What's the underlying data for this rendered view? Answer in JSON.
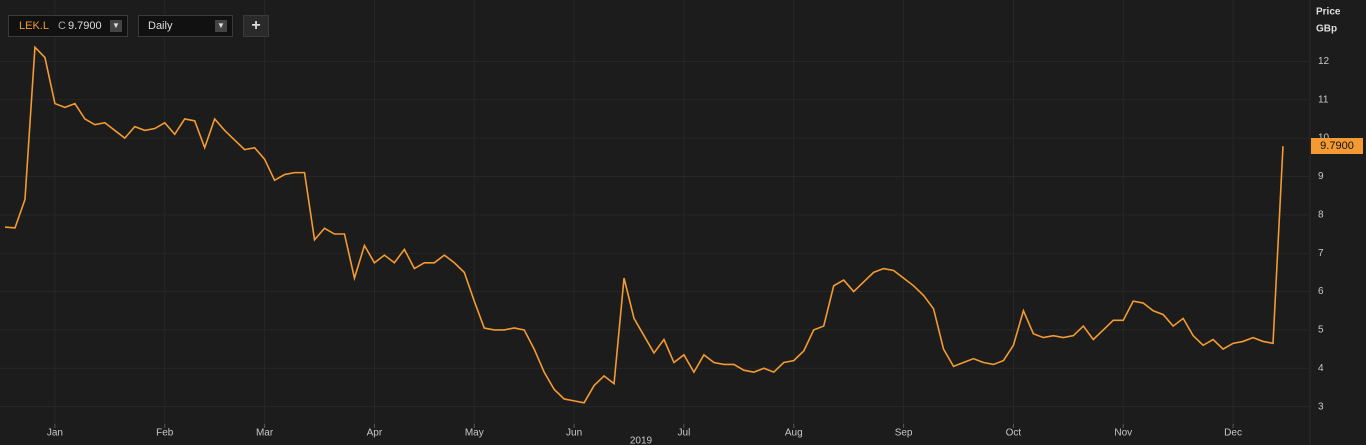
{
  "toolbar": {
    "symbol": "LEK.L",
    "price_type": "C",
    "price": "9.7900",
    "interval": "Daily",
    "add_button": "+"
  },
  "chart_data": {
    "type": "line",
    "ylabel": "Price",
    "yunit": "GBp",
    "xlabel": "2019",
    "color": "#f39a32",
    "grid": true,
    "values": [
      7.68,
      7.66,
      8.4,
      12.37,
      12.1,
      10.9,
      10.8,
      10.9,
      10.5,
      10.35,
      10.4,
      10.2,
      10.0,
      10.3,
      10.2,
      10.25,
      10.4,
      10.1,
      10.5,
      10.45,
      9.75,
      10.5,
      10.2,
      9.95,
      9.7,
      9.75,
      9.45,
      8.9,
      9.05,
      9.1,
      9.1,
      7.35,
      7.65,
      7.5,
      7.5,
      6.35,
      7.2,
      6.75,
      6.95,
      6.75,
      7.1,
      6.6,
      6.75,
      6.75,
      6.95,
      6.75,
      6.5,
      5.75,
      5.05,
      5.0,
      5.0,
      5.05,
      5.0,
      4.5,
      3.9,
      3.45,
      3.2,
      3.15,
      3.1,
      3.55,
      3.8,
      3.6,
      6.35,
      5.3,
      4.85,
      4.4,
      4.75,
      4.15,
      4.35,
      3.9,
      4.35,
      4.15,
      4.1,
      4.1,
      3.95,
      3.9,
      4.0,
      3.9,
      4.15,
      4.2,
      4.45,
      5.0,
      5.1,
      6.15,
      6.3,
      6.0,
      6.25,
      6.5,
      6.6,
      6.55,
      6.35,
      6.15,
      5.9,
      5.55,
      4.5,
      4.05,
      4.15,
      4.25,
      4.15,
      4.1,
      4.2,
      4.6,
      5.5,
      4.9,
      4.8,
      4.85,
      4.8,
      4.85,
      5.1,
      4.75,
      5.0,
      5.25,
      5.25,
      5.75,
      5.7,
      5.5,
      5.4,
      5.1,
      5.3,
      4.85,
      4.6,
      4.75,
      4.5,
      4.65,
      4.7,
      4.8,
      4.7,
      4.65,
      9.79
    ],
    "xlim": [
      0,
      128
    ],
    "xticks": [
      {
        "value": 5,
        "label": "Jan"
      },
      {
        "value": 16,
        "label": "Feb"
      },
      {
        "value": 26,
        "label": "Mar"
      },
      {
        "value": 37,
        "label": "Apr"
      },
      {
        "value": 47,
        "label": "May"
      },
      {
        "value": 57,
        "label": "Jun"
      },
      {
        "value": 68,
        "label": "Jul"
      },
      {
        "value": 79,
        "label": "Aug"
      },
      {
        "value": 90,
        "label": "Sep"
      },
      {
        "value": 101,
        "label": "Oct"
      },
      {
        "value": 112,
        "label": "Nov"
      },
      {
        "value": 123,
        "label": "Dec"
      }
    ],
    "ylim": [
      2,
      13.6
    ],
    "yticks": [
      3,
      4,
      5,
      6,
      7,
      8,
      9,
      10,
      11,
      12
    ]
  }
}
